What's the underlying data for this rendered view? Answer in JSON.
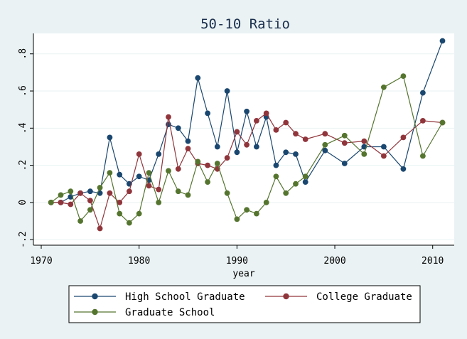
{
  "chart_data": {
    "type": "line",
    "title": "50-10 Ratio",
    "xlabel": "year",
    "ylabel": "",
    "xlim": [
      1969.2,
      2012.2
    ],
    "ylim": [
      -0.23,
      0.91
    ],
    "xticks": [
      1970,
      1980,
      1990,
      2000,
      2010
    ],
    "xtick_labels": [
      "1970",
      "1980",
      "1990",
      "2000",
      "2010"
    ],
    "yticks": [
      -0.2,
      0,
      0.2,
      0.4,
      0.6,
      0.8
    ],
    "ytick_labels": [
      "-.2",
      "0",
      ".2",
      ".4",
      ".6",
      ".8"
    ],
    "grid": "horizontal",
    "legend_position": "bottom",
    "series": [
      {
        "name": "High School Graduate",
        "color": "#1a476f",
        "x": [
          1971,
          1972,
          1973,
          1974,
          1975,
          1976,
          1977,
          1978,
          1979,
          1980,
          1981,
          1982,
          1983,
          1984,
          1985,
          1986,
          1987,
          1988,
          1989,
          1990,
          1991,
          1992,
          1993,
          1994,
          1995,
          1996,
          1997,
          1999,
          2001,
          2003,
          2005,
          2007,
          2009,
          2011
        ],
        "y": [
          0.0,
          0.0,
          0.03,
          0.05,
          0.06,
          0.05,
          0.35,
          0.15,
          0.1,
          0.14,
          0.12,
          0.26,
          0.42,
          0.4,
          0.33,
          0.67,
          0.48,
          0.3,
          0.6,
          0.27,
          0.49,
          0.3,
          0.46,
          0.2,
          0.27,
          0.26,
          0.11,
          0.28,
          0.21,
          0.3,
          0.3,
          0.18,
          0.59,
          0.87
        ]
      },
      {
        "name": "College Graduate",
        "color": "#90353b",
        "x": [
          1971,
          1972,
          1973,
          1974,
          1975,
          1976,
          1977,
          1978,
          1979,
          1980,
          1981,
          1982,
          1983,
          1984,
          1985,
          1986,
          1987,
          1988,
          1989,
          1990,
          1991,
          1992,
          1993,
          1994,
          1995,
          1996,
          1997,
          1999,
          2001,
          2003,
          2005,
          2007,
          2009,
          2011
        ],
        "y": [
          0.0,
          0.0,
          -0.01,
          0.05,
          0.01,
          -0.14,
          0.05,
          0.0,
          0.06,
          0.26,
          0.09,
          0.07,
          0.46,
          0.18,
          0.29,
          0.21,
          0.2,
          0.18,
          0.24,
          0.38,
          0.31,
          0.44,
          0.48,
          0.39,
          0.43,
          0.37,
          0.34,
          0.37,
          0.32,
          0.33,
          0.25,
          0.35,
          0.44,
          0.43
        ]
      },
      {
        "name": "Graduate School",
        "color": "#55752f",
        "x": [
          1971,
          1972,
          1973,
          1974,
          1975,
          1976,
          1977,
          1978,
          1979,
          1980,
          1981,
          1982,
          1983,
          1984,
          1985,
          1986,
          1987,
          1988,
          1989,
          1990,
          1991,
          1992,
          1993,
          1994,
          1995,
          1996,
          1997,
          1999,
          2001,
          2003,
          2005,
          2007,
          2009,
          2011
        ],
        "y": [
          0.0,
          0.04,
          0.06,
          -0.1,
          -0.04,
          0.08,
          0.16,
          -0.06,
          -0.11,
          -0.06,
          0.16,
          0.0,
          0.17,
          0.06,
          0.04,
          0.22,
          0.11,
          0.21,
          0.05,
          -0.09,
          -0.04,
          -0.06,
          0.0,
          0.14,
          0.05,
          0.1,
          0.14,
          0.31,
          0.36,
          0.26,
          0.62,
          0.68,
          0.25,
          0.43
        ]
      }
    ]
  }
}
